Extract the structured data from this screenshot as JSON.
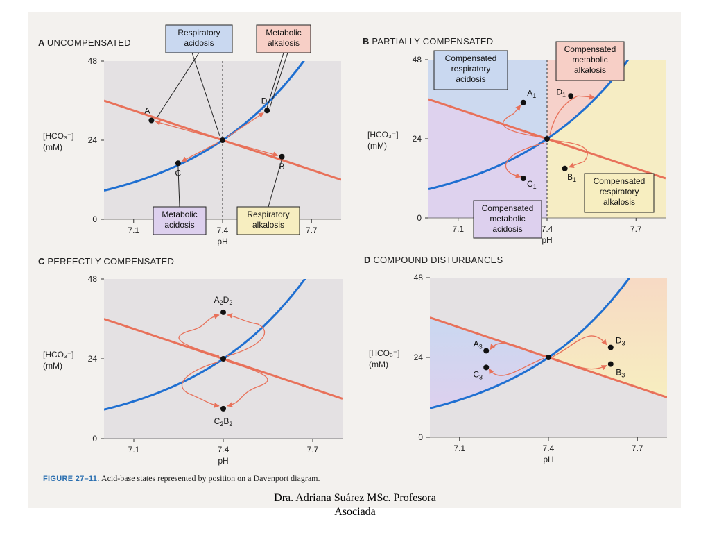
{
  "colors": {
    "blue_curve": "#1f6fd1",
    "red_line": "#e8715a",
    "arrow": "#e8715a",
    "plot_bg": "#e4e1e3",
    "resp_acidosis_fill": "#c9d8f0",
    "metabolic_alkalosis_fill": "#f7cfc6",
    "metabolic_acidosis_fill": "#ddd0ee",
    "resp_alkalosis_fill": "#f7eec0",
    "caption_label": "#2a6fb0"
  },
  "caption": {
    "figure": "FIGURE 27–11.",
    "text": "Acid-base states represented by position on a Davenport diagram."
  },
  "footer": {
    "line1": "Dra. Adriana Suárez MSc.  Profesora",
    "line2": "Asociada"
  },
  "chart_data": [
    {
      "panel": "A",
      "title": "UNCOMPENSATED",
      "type": "line",
      "xlabel": "pH",
      "ylabel_1": "[HCO₃⁻]",
      "ylabel_2": "(mM)",
      "xlim": [
        7.0,
        7.8
      ],
      "ylim": [
        0,
        48
      ],
      "x_ticks": [
        "7.1",
        "7.4",
        "7.7"
      ],
      "y_ticks": [
        "0",
        "24",
        "48"
      ],
      "reference_line_x": 7.4,
      "points": [
        {
          "label": "A",
          "x": 7.16,
          "y": 30
        },
        {
          "label": "D",
          "x": 7.55,
          "y": 33
        },
        {
          "label": "C",
          "x": 7.25,
          "y": 17
        },
        {
          "label": "B",
          "x": 7.6,
          "y": 19
        },
        {
          "label": "",
          "x": 7.4,
          "y": 24
        }
      ],
      "boxes": [
        {
          "lines": [
            "Respiratory",
            "acidosis"
          ],
          "fill": "resp_acidosis_fill"
        },
        {
          "lines": [
            "Metabolic",
            "alkalosis"
          ],
          "fill": "metabolic_alkalosis_fill"
        },
        {
          "lines": [
            "Metabolic",
            "acidosis"
          ],
          "fill": "metabolic_acidosis_fill"
        },
        {
          "lines": [
            "Respiratory",
            "alkalosis"
          ],
          "fill": "resp_alkalosis_fill"
        }
      ]
    },
    {
      "panel": "B",
      "title": "PARTIALLY COMPENSATED",
      "type": "line",
      "xlabel": "pH",
      "ylabel_1": "[HCO₃⁻]",
      "ylabel_2": "(mM)",
      "xlim": [
        7.0,
        7.8
      ],
      "ylim": [
        0,
        48
      ],
      "x_ticks": [
        "7.1",
        "7.4",
        "7.7"
      ],
      "y_ticks": [
        "0",
        "24",
        "48"
      ],
      "reference_line_x": 7.4,
      "points": [
        {
          "label": "A",
          "sub": "1",
          "x": 7.32,
          "y": 35
        },
        {
          "label": "D",
          "sub": "1",
          "x": 7.48,
          "y": 37
        },
        {
          "label": "C",
          "sub": "1",
          "x": 7.32,
          "y": 12
        },
        {
          "label": "B",
          "sub": "1",
          "x": 7.46,
          "y": 15
        },
        {
          "label": "",
          "x": 7.4,
          "y": 24
        }
      ],
      "boxes": [
        {
          "lines": [
            "Compensated",
            "respiratory",
            "acidosis"
          ],
          "fill": "resp_acidosis_fill"
        },
        {
          "lines": [
            "Compensated",
            "metabolic",
            "alkalosis"
          ],
          "fill": "metabolic_alkalosis_fill"
        },
        {
          "lines": [
            "Compensated",
            "metabolic",
            "acidosis"
          ],
          "fill": "metabolic_acidosis_fill"
        },
        {
          "lines": [
            "Compensated",
            "respiratory",
            "alkalosis"
          ],
          "fill": "resp_alkalosis_fill"
        }
      ]
    },
    {
      "panel": "C",
      "title": "PERFECTLY COMPENSATED",
      "type": "line",
      "xlabel": "pH",
      "ylabel_1": "[HCO₃⁻]",
      "ylabel_2": "(mM)",
      "xlim": [
        7.0,
        7.8
      ],
      "ylim": [
        0,
        48
      ],
      "x_ticks": [
        "7.1",
        "7.4",
        "7.7"
      ],
      "y_ticks": [
        "0",
        "24",
        "48"
      ],
      "points": [
        {
          "label": "A",
          "sub": "2",
          "label2": "D",
          "sub2": "2",
          "x": 7.4,
          "y": 38
        },
        {
          "label": "C",
          "sub": "2",
          "label2": "B",
          "sub2": "2",
          "x": 7.4,
          "y": 9
        },
        {
          "label": "",
          "x": 7.4,
          "y": 24
        }
      ]
    },
    {
      "panel": "D",
      "title": "COMPOUND DISTURBANCES",
      "type": "line",
      "xlabel": "pH",
      "ylabel_1": "[HCO₃⁻]",
      "ylabel_2": "(mM)",
      "xlim": [
        7.0,
        7.8
      ],
      "ylim": [
        0,
        48
      ],
      "x_ticks": [
        "7.1",
        "7.4",
        "7.7"
      ],
      "y_ticks": [
        "0",
        "24",
        "48"
      ],
      "points": [
        {
          "label": "A",
          "sub": "3",
          "x": 7.19,
          "y": 26
        },
        {
          "label": "C",
          "sub": "3",
          "x": 7.19,
          "y": 21
        },
        {
          "label": "D",
          "sub": "3",
          "x": 7.61,
          "y": 27
        },
        {
          "label": "B",
          "sub": "3",
          "x": 7.61,
          "y": 22
        },
        {
          "label": "",
          "x": 7.4,
          "y": 24
        }
      ]
    }
  ]
}
